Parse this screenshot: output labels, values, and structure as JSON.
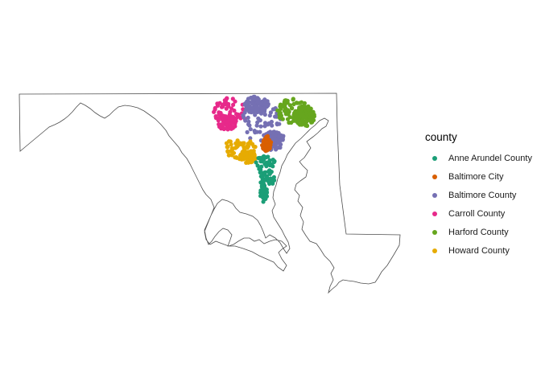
{
  "legend": {
    "title": "county",
    "items": [
      {
        "label": "Anne Arundel County",
        "color": "#1B9E77"
      },
      {
        "label": "Baltimore City",
        "color": "#D95F02"
      },
      {
        "label": "Baltimore County",
        "color": "#7570B3"
      },
      {
        "label": "Carroll County",
        "color": "#E7298A"
      },
      {
        "label": "Harford County",
        "color": "#66A61E"
      },
      {
        "label": "Howard County",
        "color": "#E6AB02"
      }
    ]
  },
  "map": {
    "region": "Maryland",
    "outline_color": "#4d4d4d",
    "clusters": [
      {
        "county": "Carroll County",
        "color": "#E7298A",
        "count": 110
      },
      {
        "county": "Baltimore County",
        "color": "#7570B3",
        "count": 230
      },
      {
        "county": "Harford County",
        "color": "#66A61E",
        "count": 170
      },
      {
        "county": "Howard County",
        "color": "#E6AB02",
        "count": 110
      },
      {
        "county": "Anne Arundel County",
        "color": "#1B9E77",
        "count": 110
      },
      {
        "county": "Baltimore City",
        "color": "#D95F02",
        "count": 60
      }
    ]
  }
}
